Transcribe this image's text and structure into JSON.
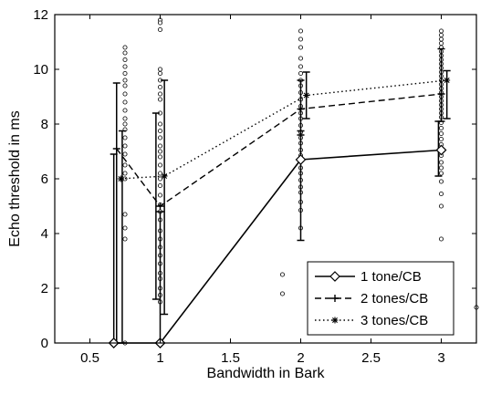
{
  "chart_data": {
    "type": "line",
    "title": "",
    "xlabel": "Bandwidth in Bark",
    "ylabel": "Echo threshold in ms",
    "xlim": [
      0.25,
      3.25
    ],
    "ylim": [
      0,
      12
    ],
    "xticks": [
      0.5,
      1,
      1.5,
      2,
      2.5,
      3
    ],
    "xtick_labels": [
      "0.5",
      "1",
      "1.5",
      "2",
      "2.5",
      "3"
    ],
    "yticks": [
      0,
      2,
      4,
      6,
      8,
      10,
      12
    ],
    "ytick_labels": [
      "0",
      "2",
      "4",
      "6",
      "8",
      "10",
      "12"
    ],
    "grid": false,
    "legend_position": "bottom-right",
    "series": [
      {
        "name": "1 tone/CB",
        "style": "solid",
        "marker": "diamond",
        "color": "#000000",
        "x": [
          0.67,
          0.67,
          1.0,
          1.0,
          2.0,
          3.0,
          3.0
        ],
        "y": [
          0.0,
          0.0,
          0.0,
          0.0,
          6.7,
          7.05,
          7.05
        ],
        "errors": [
          {
            "x": 0.67,
            "low": 0.0,
            "high": 6.9
          },
          {
            "x": 1.0,
            "low": 0.0,
            "high": 4.8
          },
          {
            "x": 2.0,
            "low": 3.75,
            "high": 7.75
          },
          {
            "x": 2.98,
            "low": 6.1,
            "high": 8.1
          }
        ]
      },
      {
        "name": "2 tones/CB",
        "style": "dashed",
        "marker": "plus",
        "color": "#000000",
        "x": [
          0.69,
          1.0,
          2.0,
          3.0
        ],
        "y": [
          7.1,
          5.0,
          8.55,
          9.1
        ],
        "errors": [
          {
            "x": 0.69,
            "low": 0.0,
            "high": 9.5
          },
          {
            "x": 0.97,
            "low": 1.6,
            "high": 8.4
          },
          {
            "x": 2.0,
            "low": 7.6,
            "high": 9.6
          },
          {
            "x": 3.0,
            "low": 8.1,
            "high": 10.75
          }
        ]
      },
      {
        "name": "3 tones/CB",
        "style": "dotted",
        "marker": "asterisk",
        "color": "#000000",
        "x": [
          0.72,
          1.03,
          2.04,
          3.04
        ],
        "y": [
          6.0,
          6.1,
          9.05,
          9.6
        ],
        "errors": [
          {
            "x": 0.73,
            "low": 0.0,
            "high": 7.75
          },
          {
            "x": 1.03,
            "low": 1.05,
            "high": 9.6
          },
          {
            "x": 2.04,
            "low": 8.2,
            "high": 9.9
          },
          {
            "x": 3.04,
            "low": 8.2,
            "high": 9.95
          }
        ]
      }
    ],
    "scatter_points": {
      "marker": "open-circle",
      "groups": [
        {
          "x": 0.75,
          "y": [
            10.8,
            10.6,
            10.35,
            10.1,
            9.85,
            9.6,
            9.4,
            9.1,
            8.8,
            8.5,
            8.2,
            8.0,
            7.8,
            7.5,
            7.2,
            6.9,
            6.5,
            6.2,
            6.0,
            4.7,
            4.2,
            3.8,
            0.0
          ]
        },
        {
          "x": 1.0,
          "y": [
            11.8,
            11.7,
            11.45,
            10.0,
            9.85,
            9.6,
            9.35,
            9.1,
            8.9,
            8.4,
            8.0,
            7.75,
            7.5,
            7.2,
            7.0,
            6.8,
            6.5,
            6.2,
            6.0,
            5.75,
            5.4,
            5.05,
            4.8,
            4.5,
            4.1,
            3.8,
            3.5,
            3.2,
            2.9,
            2.55,
            2.35,
            2.0,
            1.75,
            1.5
          ]
        },
        {
          "x": 2.0,
          "y": [
            11.4,
            11.1,
            10.8,
            10.4,
            10.1,
            9.85,
            9.6,
            9.4,
            9.15,
            8.9,
            8.65,
            8.4,
            8.2,
            7.95,
            7.7,
            7.5,
            7.3,
            7.05,
            6.85,
            6.65,
            6.4,
            6.2,
            5.95,
            5.7,
            5.5,
            5.15,
            4.85,
            4.2
          ]
        },
        {
          "x": 1.87,
          "y": [
            2.5,
            1.8
          ]
        },
        {
          "x": 3.0,
          "y": [
            11.4,
            11.25,
            11.1,
            10.95,
            10.8,
            10.65,
            10.5,
            10.35,
            10.2,
            10.05,
            9.9,
            9.75,
            9.6,
            9.45,
            9.3,
            9.15,
            9.0,
            8.85,
            8.7,
            8.55,
            8.4,
            8.25,
            8.05,
            7.85,
            7.65,
            7.45,
            7.25,
            7.05,
            6.85,
            6.6,
            6.4,
            6.2,
            5.9,
            5.45,
            5.0,
            3.8,
            2.9,
            1.3
          ]
        },
        {
          "x": 3.25,
          "y": [
            1.3
          ]
        }
      ]
    }
  }
}
